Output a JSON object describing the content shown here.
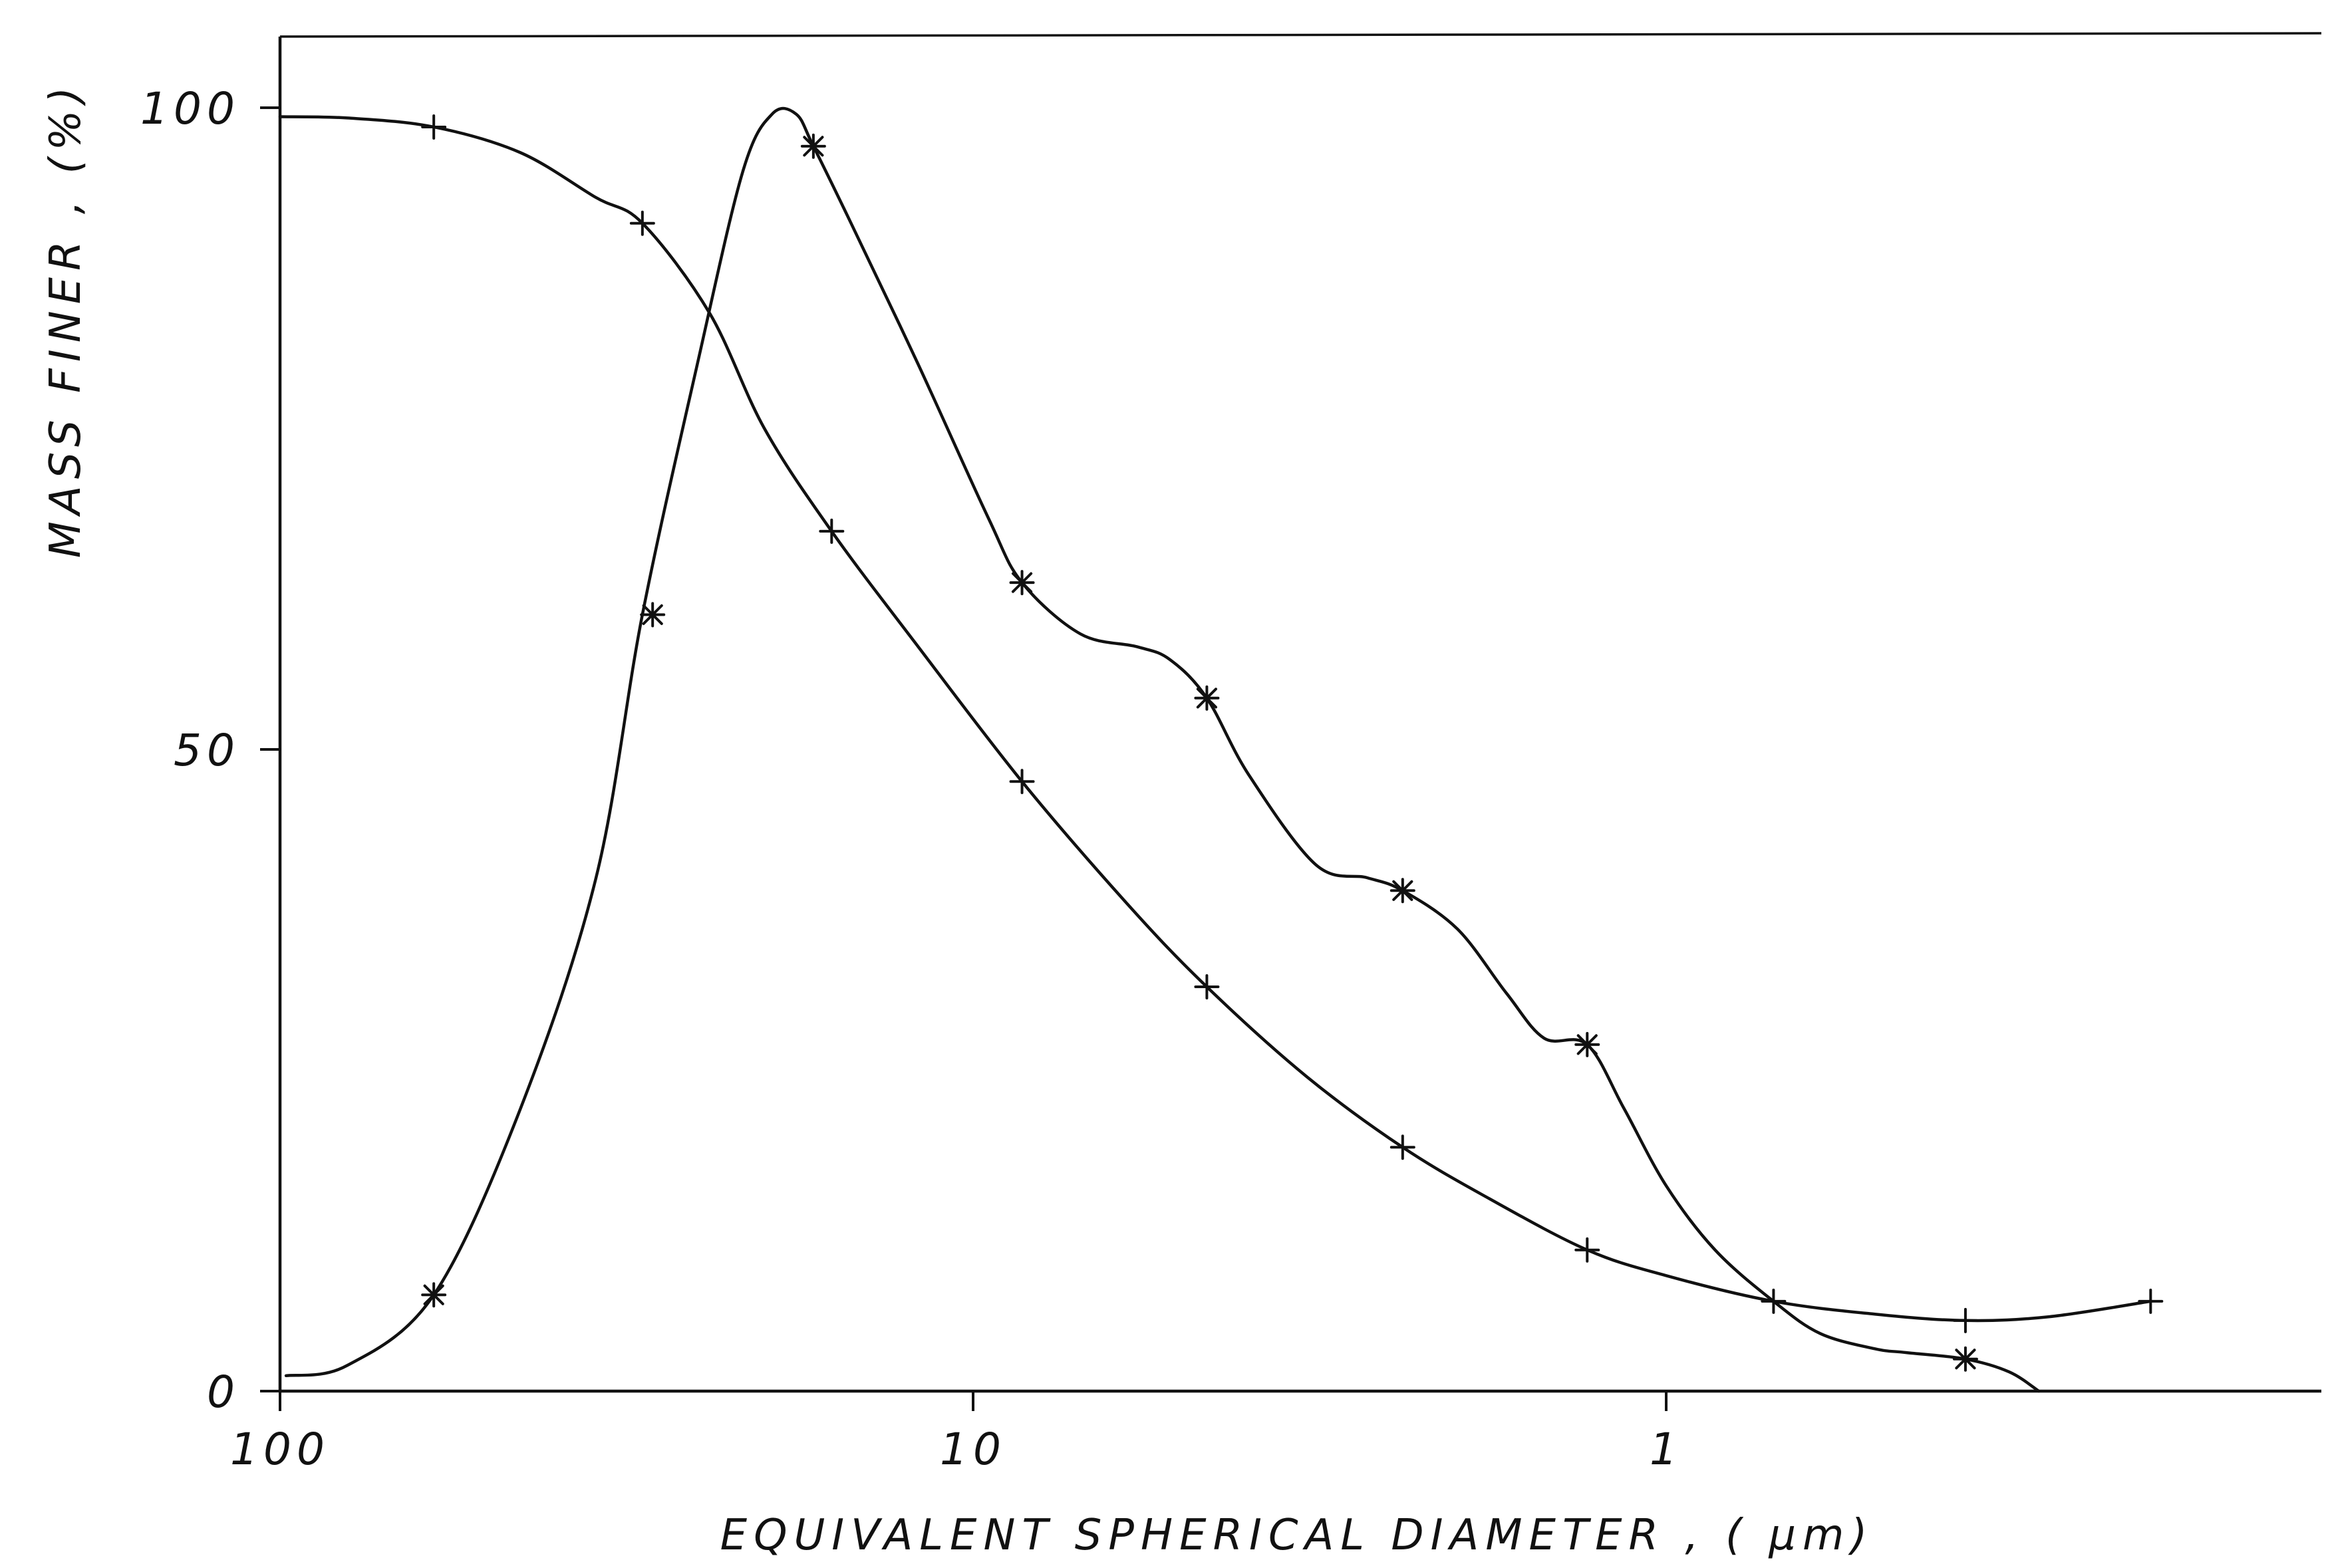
{
  "chart_data": {
    "type": "line",
    "title": "",
    "xlabel": "EQUIVALENT SPHERICAL DIAMETER , ( μm)",
    "ylabel": "MASS FINER , (%)",
    "x_scale": "log",
    "x_reversed": true,
    "xlim": [
      100,
      0.1
    ],
    "ylim": [
      0,
      100
    ],
    "x_ticks": [
      {
        "value": 100,
        "label": "100"
      },
      {
        "value": 10,
        "label": "10"
      },
      {
        "value": 1,
        "label": "1"
      }
    ],
    "y_ticks": [
      {
        "value": 0,
        "label": "0"
      },
      {
        "value": 50,
        "label": "50"
      },
      {
        "value": 100,
        "label": "100"
      }
    ],
    "grid": false,
    "legend": null,
    "series": [
      {
        "marker": "plus",
        "x": [
          60,
          30,
          16,
          8.5,
          4.6,
          2.4,
          1.3,
          0.7,
          0.37,
          0.2
        ],
        "y": [
          98.5,
          91,
          67,
          47.5,
          31.5,
          19,
          11,
          7,
          5.5,
          7
        ]
      },
      {
        "marker": "asterisk",
        "x": [
          60,
          29,
          17,
          8.5,
          4.6,
          2.4,
          1.3,
          0.37
        ],
        "y": [
          7.5,
          60.5,
          97,
          63,
          54,
          39,
          27,
          2.5
        ]
      }
    ],
    "curves": [
      {
        "x": [
          98,
          80,
          60,
          45,
          35,
          30,
          25,
          21.5,
          19.5,
          18,
          17,
          15,
          12,
          9.5,
          8.5,
          7,
          5.8,
          5.2,
          4.6,
          4.0,
          3.2,
          2.7,
          2.4,
          2.0,
          1.7,
          1.5,
          1.3,
          1.15,
          1.0,
          0.85,
          0.7,
          0.6,
          0.5,
          0.45,
          0.37,
          0.32,
          0.29
        ],
        "y": [
          1.2,
          2,
          7.5,
          22,
          40,
          60.5,
          80,
          95,
          99.5,
          99.5,
          97,
          91,
          80,
          68,
          63,
          59,
          58,
          57,
          54,
          48,
          41,
          40,
          39,
          36,
          31,
          27.5,
          27,
          22,
          16,
          11,
          7,
          4.5,
          3.3,
          3,
          2.5,
          1.5,
          0
        ]
      },
      {
        "x": [
          100,
          80,
          60,
          45,
          35,
          30,
          24,
          20,
          16,
          12,
          8.5,
          6,
          4.6,
          3.3,
          2.4,
          1.8,
          1.3,
          1.0,
          0.7,
          0.5,
          0.37,
          0.28,
          0.2
        ],
        "y": [
          99.3,
          99.2,
          98.5,
          96.5,
          93,
          91,
          84,
          75,
          67,
          58,
          47.5,
          38,
          31.5,
          24.5,
          19,
          15,
          11,
          9,
          7,
          6,
          5.5,
          5.8,
          7
        ]
      }
    ]
  }
}
